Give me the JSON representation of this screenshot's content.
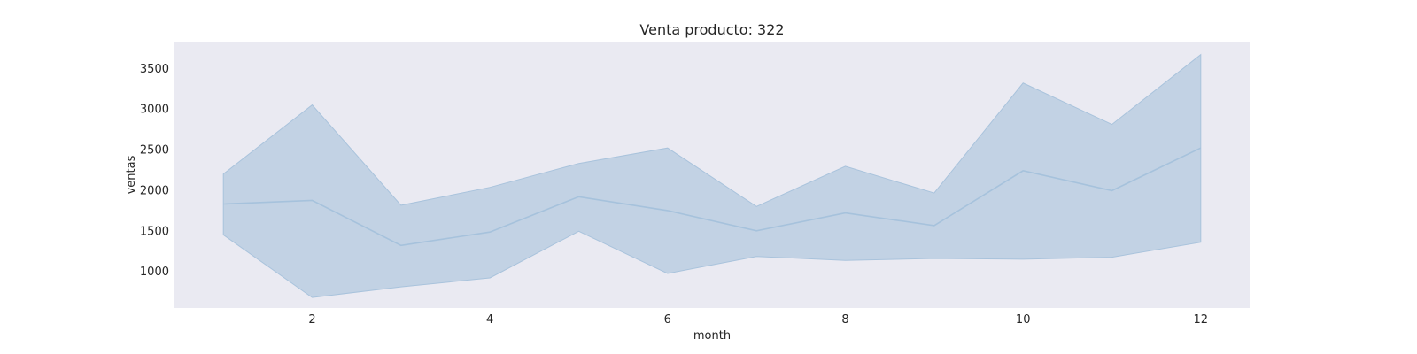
{
  "chart_data": {
    "type": "line",
    "title": "Venta producto: 322",
    "xlabel": "month",
    "ylabel": "ventas",
    "x": [
      1,
      2,
      3,
      4,
      5,
      6,
      7,
      8,
      9,
      10,
      11,
      12
    ],
    "series": [
      {
        "values": [
          1830,
          1875,
          1320,
          1485,
          1920,
          1750,
          1500,
          1720,
          1565,
          2240,
          1995,
          2520
        ],
        "band_lower": [
          1450,
          680,
          810,
          920,
          1495,
          975,
          1185,
          1135,
          1160,
          1150,
          1175,
          1360
        ],
        "band_upper": [
          2200,
          3050,
          1815,
          2035,
          2330,
          2520,
          1800,
          2295,
          1965,
          3320,
          2810,
          3670
        ]
      }
    ],
    "xticks": [
      2,
      4,
      6,
      8,
      10,
      12
    ],
    "yticks": [
      1000,
      1500,
      2000,
      2500,
      3000,
      3500
    ],
    "xlim": [
      0.45,
      12.55
    ],
    "ylim": [
      550,
      3830
    ],
    "grid": false,
    "colors": {
      "plot_background": "#eaeaf2",
      "line": "#a6c2dc",
      "band_fill": "#c2d2e4",
      "band_edge": "#a9c3dc"
    }
  }
}
